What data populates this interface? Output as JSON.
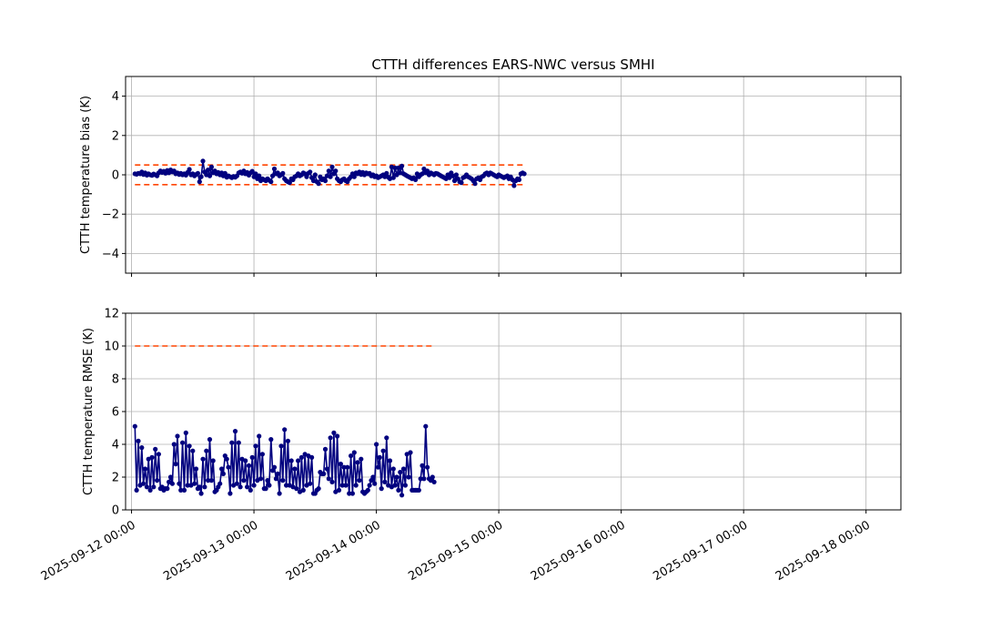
{
  "figure": {
    "title": "CTTH differences EARS-NWC versus SMHI"
  },
  "chart_data": [
    {
      "type": "line",
      "title": "CTTH differences EARS-NWC versus SMHI",
      "xlabel": "",
      "ylabel": "CTTH temperature bias (K)",
      "xlim": [
        "2025-09-11 22:50",
        "2025-09-18 06:50"
      ],
      "ylim": [
        -5,
        5
      ],
      "yticks": [
        -4,
        -2,
        0,
        2,
        4
      ],
      "ytick_labels": [
        "−4",
        "−2",
        "0",
        "2",
        "4"
      ],
      "x_tick_labels_shown": false,
      "grid": true,
      "series": [
        {
          "color": "#00007f",
          "marker": "circle",
          "start": "2025-09-12 00:40",
          "step_minutes": 20,
          "values": [
            0.05,
            0.03,
            0.08,
            0.05,
            0.15,
            0.02,
            0.1,
            -0.02,
            0.05,
            0.0,
            -0.03,
            0.04,
            0.0,
            -0.05,
            0.1,
            0.2,
            0.12,
            0.18,
            0.08,
            0.22,
            0.1,
            0.25,
            0.15,
            0.2,
            0.05,
            0.1,
            0.02,
            0.08,
            0.0,
            0.05,
            -0.02,
            0.12,
            0.28,
            0.0,
            0.05,
            -0.05,
            0.02,
            0.08,
            -0.35,
            -0.1,
            0.7,
            0.15,
            0.0,
            0.25,
            -0.05,
            0.4,
            0.1,
            0.2,
            0.05,
            0.12,
            0.0,
            0.1,
            -0.05,
            0.08,
            -0.12,
            -0.05,
            -0.1,
            -0.15,
            -0.08,
            -0.12,
            -0.05,
            0.1,
            0.15,
            0.08,
            0.2,
            0.05,
            0.12,
            -0.02,
            0.1,
            0.18,
            -0.1,
            0.05,
            -0.2,
            -0.05,
            -0.3,
            -0.2,
            -0.25,
            -0.3,
            -0.2,
            -0.28,
            -0.35,
            -0.05,
            0.3,
            0.05,
            0.1,
            -0.05,
            0.0,
            0.08,
            -0.2,
            -0.3,
            -0.35,
            -0.4,
            -0.2,
            -0.25,
            -0.1,
            -0.05,
            0.05,
            -0.05,
            0.0,
            0.1,
            0.05,
            -0.1,
            0.08,
            0.15,
            -0.15,
            -0.3,
            0.0,
            -0.35,
            -0.45,
            -0.1,
            -0.25,
            -0.2,
            -0.3,
            -0.05,
            0.2,
            -0.1,
            0.4,
            0.05,
            0.2,
            -0.2,
            -0.3,
            -0.35,
            -0.25,
            -0.2,
            -0.3,
            -0.35,
            -0.2,
            -0.1,
            0.05,
            -0.1,
            0.1,
            0.05,
            0.15,
            0.02,
            0.12,
            0.0,
            0.1,
            0.05,
            0.08,
            -0.05,
            0.0,
            -0.1,
            -0.05,
            -0.15,
            -0.1,
            -0.05,
            0.0,
            -0.1,
            0.08,
            -0.12,
            -0.2,
            0.4,
            -0.15,
            0.35,
            0.0,
            0.35,
            0.1,
            0.45,
            0.05,
            0.0,
            -0.05,
            -0.1,
            -0.15,
            -0.2,
            -0.15,
            -0.25,
            0.05,
            -0.1,
            0.0,
            0.05,
            0.3,
            0.1,
            0.2,
            0.0,
            0.1,
            0.05,
            0.0,
            0.08,
            0.05,
            0.0,
            -0.05,
            -0.1,
            -0.15,
            -0.2,
            0.0,
            -0.15,
            0.1,
            -0.05,
            -0.3,
            0.0,
            -0.2,
            -0.35,
            -0.4,
            -0.15,
            -0.1,
            0.0,
            -0.1,
            -0.15,
            -0.2,
            -0.3,
            -0.45,
            -0.2,
            -0.15,
            -0.25,
            -0.1,
            -0.05,
            0.05,
            0.1,
            0.0,
            0.1,
            0.05,
            0.0,
            -0.05,
            -0.1,
            0.0,
            -0.05,
            -0.1,
            -0.15,
            -0.1,
            -0.05,
            -0.2,
            -0.1,
            -0.25,
            -0.55,
            -0.3,
            -0.2,
            -0.25,
            0.05,
            0.1,
            0.05
          ]
        }
      ],
      "reference_lines": [
        {
          "y": 0.5,
          "style": "dashed",
          "color": "#ff4500"
        },
        {
          "y": -0.5,
          "style": "dashed",
          "color": "#ff4500"
        }
      ]
    },
    {
      "type": "line",
      "title": "",
      "xlabel": "",
      "ylabel": "CTTH temperature RMSE (K)",
      "xlim": [
        "2025-09-11 22:50",
        "2025-09-18 06:50"
      ],
      "ylim": [
        0,
        12
      ],
      "yticks": [
        0,
        2,
        4,
        6,
        8,
        10,
        12
      ],
      "ytick_labels": [
        "0",
        "2",
        "4",
        "6",
        "8",
        "10",
        "12"
      ],
      "xticks": [
        "2025-09-12 00:00",
        "2025-09-13 00:00",
        "2025-09-14 00:00",
        "2025-09-15 00:00",
        "2025-09-16 00:00",
        "2025-09-17 00:00",
        "2025-09-18 00:00"
      ],
      "xtick_labels": [
        "2025-09-12 00:00",
        "2025-09-13 00:00",
        "2025-09-14 00:00",
        "2025-09-15 00:00",
        "2025-09-16 00:00",
        "2025-09-17 00:00",
        "2025-09-18 00:00"
      ],
      "grid": true,
      "series": [
        {
          "color": "#00007f",
          "marker": "circle",
          "start": "2025-09-12 00:40",
          "step_minutes": 20,
          "values": [
            5.1,
            1.2,
            4.2,
            1.5,
            3.8,
            1.6,
            2.5,
            1.4,
            3.1,
            1.2,
            3.2,
            1.4,
            3.7,
            1.8,
            3.4,
            1.3,
            1.4,
            1.2,
            1.3,
            1.3,
            1.7,
            2.0,
            1.6,
            4.0,
            2.8,
            4.5,
            1.6,
            1.2,
            4.1,
            1.2,
            4.7,
            1.5,
            3.9,
            1.5,
            3.6,
            1.6,
            2.5,
            1.3,
            1.4,
            1.0,
            3.1,
            1.4,
            3.6,
            1.8,
            4.3,
            1.8,
            3.0,
            1.1,
            1.2,
            1.4,
            1.6,
            2.5,
            2.2,
            3.3,
            3.1,
            2.6,
            1.0,
            4.1,
            1.5,
            4.8,
            1.6,
            4.1,
            1.4,
            3.1,
            1.8,
            3.0,
            1.4,
            2.7,
            1.2,
            3.2,
            1.5,
            3.9,
            1.8,
            4.5,
            1.9,
            3.4,
            1.3,
            1.3,
            1.8,
            1.5,
            4.3,
            2.4,
            2.6,
            1.9,
            2.2,
            1.0,
            3.9,
            1.8,
            4.9,
            1.5,
            4.2,
            1.5,
            3.0,
            1.4,
            2.5,
            1.3,
            3.0,
            1.1,
            3.2,
            1.2,
            3.4,
            1.5,
            3.3,
            1.6,
            3.2,
            1.0,
            1.0,
            1.2,
            1.3,
            2.3,
            2.2,
            2.2,
            3.7,
            2.5,
            1.9,
            4.4,
            1.7,
            4.7,
            1.1,
            4.5,
            1.2,
            2.8,
            1.5,
            2.6,
            1.5,
            2.6,
            1.0,
            3.3,
            1.0,
            3.5,
            1.5,
            2.9,
            1.8,
            3.1,
            1.1,
            1.0,
            1.1,
            1.2,
            1.5,
            1.8,
            2.0,
            1.6,
            4.0,
            2.6,
            3.2,
            1.3,
            3.6,
            1.7,
            4.4,
            1.5,
            3.0,
            1.4,
            2.5,
            1.5,
            2.0,
            1.2,
            2.3,
            0.9,
            2.5,
            1.5,
            3.4,
            2.0,
            3.5,
            1.2,
            1.2,
            1.2,
            1.2,
            1.2,
            1.9,
            2.7,
            1.9,
            5.1,
            2.6,
            1.9,
            1.8,
            2.0,
            1.7
          ]
        }
      ],
      "reference_lines": [
        {
          "y": 10,
          "style": "dashed",
          "color": "#ff4500"
        }
      ]
    }
  ]
}
